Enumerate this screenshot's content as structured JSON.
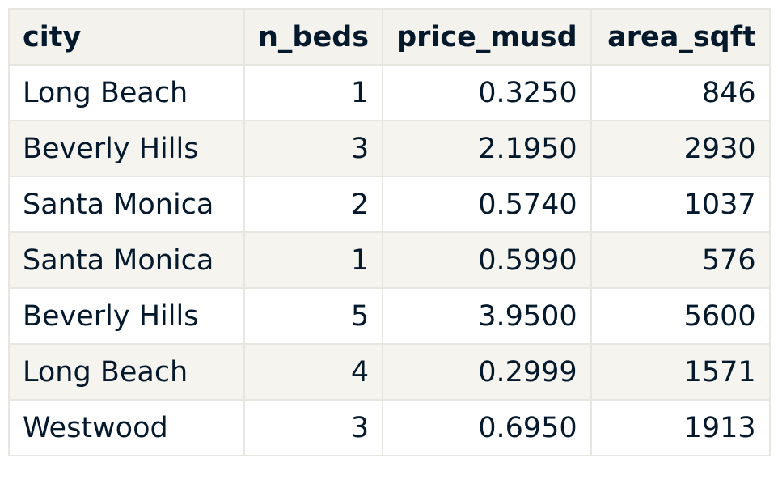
{
  "table": {
    "columns": [
      "city",
      "n_beds",
      "price_musd",
      "area_sqft"
    ],
    "rows": [
      [
        "Long Beach",
        "1",
        "0.3250",
        "846"
      ],
      [
        "Beverly Hills",
        "3",
        "2.1950",
        "2930"
      ],
      [
        "Santa Monica",
        "2",
        "0.5740",
        "1037"
      ],
      [
        "Santa Monica",
        "1",
        "0.5990",
        "576"
      ],
      [
        "Beverly Hills",
        "5",
        "3.9500",
        "5600"
      ],
      [
        "Long Beach",
        "4",
        "0.2999",
        "1571"
      ],
      [
        "Westwood",
        "3",
        "0.6950",
        "1913"
      ]
    ]
  },
  "colors": {
    "text": "#05192d",
    "header_bg": "#f4f2ec",
    "stripe_bg": "#f6f4ee",
    "border": "#e8e6e0"
  }
}
